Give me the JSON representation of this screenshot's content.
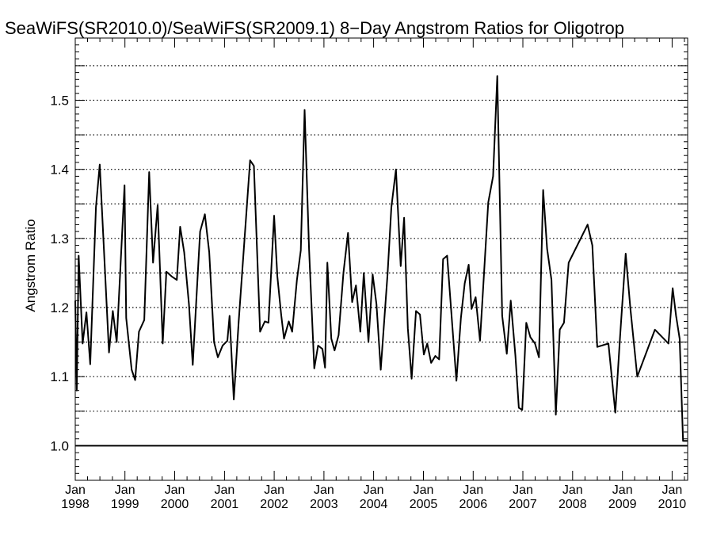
{
  "chart_data": {
    "type": "line",
    "title": "SeaWiFS(SR2010.0)/SeaWiFS(SR2009.1) 8−Day Angstrom Ratios for Oligotrop",
    "xlabel": "",
    "ylabel": "Angstrom Ratio",
    "ylim": [
      0.95,
      1.59
    ],
    "xlim": [
      "1998-01-01",
      "2010-04-25"
    ],
    "yticks": [
      "1.0",
      "1.1",
      "1.2",
      "1.3",
      "1.4",
      "1.5"
    ],
    "xticks": [
      {
        "month": "Jan",
        "year": "1998",
        "date": "1998-01-01"
      },
      {
        "month": "Jan",
        "year": "1999",
        "date": "1999-01-01"
      },
      {
        "month": "Jan",
        "year": "2000",
        "date": "2000-01-01"
      },
      {
        "month": "Jan",
        "year": "2001",
        "date": "2001-01-01"
      },
      {
        "month": "Jan",
        "year": "2002",
        "date": "2002-01-01"
      },
      {
        "month": "Jan",
        "year": "2003",
        "date": "2003-01-01"
      },
      {
        "month": "Jan",
        "year": "2004",
        "date": "2004-01-01"
      },
      {
        "month": "Jan",
        "year": "2005",
        "date": "2005-01-01"
      },
      {
        "month": "Jan",
        "year": "2006",
        "date": "2006-01-01"
      },
      {
        "month": "Jan",
        "year": "2007",
        "date": "2007-01-01"
      },
      {
        "month": "Jan",
        "year": "2008",
        "date": "2008-01-01"
      },
      {
        "month": "Jan",
        "year": "2009",
        "date": "2009-01-01"
      },
      {
        "month": "Jan",
        "year": "2010",
        "date": "2010-01-01"
      }
    ],
    "grid": "dotted horizontal every 0.05",
    "reference_line": 1.0,
    "series": [
      {
        "color": "#000000",
        "points": [
          [
            "1998-01-01",
            1.21
          ],
          [
            "1998-01-12",
            1.08
          ],
          [
            "1998-01-26",
            1.275
          ],
          [
            "1998-02-24",
            1.148
          ],
          [
            "1998-03-24",
            1.193
          ],
          [
            "1998-04-21",
            1.118
          ],
          [
            "1998-06-02",
            1.345
          ],
          [
            "1998-06-30",
            1.407
          ],
          [
            "1998-09-06",
            1.135
          ],
          [
            "1998-10-04",
            1.195
          ],
          [
            "1998-11-01",
            1.15
          ],
          [
            "1998-12-29",
            1.377
          ],
          [
            "1999-01-10",
            1.185
          ],
          [
            "1999-02-19",
            1.11
          ],
          [
            "1999-03-17",
            1.095
          ],
          [
            "1999-04-14",
            1.165
          ],
          [
            "1999-05-23",
            1.182
          ],
          [
            "1999-06-28",
            1.396
          ],
          [
            "1999-07-26",
            1.265
          ],
          [
            "1999-08-29",
            1.348
          ],
          [
            "1999-10-05",
            1.148
          ],
          [
            "1999-11-01",
            1.252
          ],
          [
            "1999-12-10",
            1.245
          ],
          [
            "2000-01-17",
            1.24
          ],
          [
            "2000-02-10",
            1.317
          ],
          [
            "2000-03-11",
            1.28
          ],
          [
            "2000-04-15",
            1.205
          ],
          [
            "2000-05-13",
            1.117
          ],
          [
            "2000-07-06",
            1.31
          ],
          [
            "2000-08-10",
            1.335
          ],
          [
            "2000-09-11",
            1.28
          ],
          [
            "2000-10-16",
            1.15
          ],
          [
            "2000-11-13",
            1.128
          ],
          [
            "2000-12-18",
            1.145
          ],
          [
            "2001-01-22",
            1.152
          ],
          [
            "2001-02-07",
            1.188
          ],
          [
            "2001-03-10",
            1.067
          ],
          [
            "2001-04-15",
            1.18
          ],
          [
            "2001-07-08",
            1.413
          ],
          [
            "2001-08-05",
            1.405
          ],
          [
            "2001-09-19",
            1.165
          ],
          [
            "2001-10-24",
            1.18
          ],
          [
            "2001-11-20",
            1.178
          ],
          [
            "2001-12-31",
            1.333
          ],
          [
            "2002-01-24",
            1.245
          ],
          [
            "2002-02-21",
            1.19
          ],
          [
            "2002-03-14",
            1.155
          ],
          [
            "2002-04-18",
            1.18
          ],
          [
            "2002-05-13",
            1.165
          ],
          [
            "2002-06-17",
            1.24
          ],
          [
            "2002-07-15",
            1.283
          ],
          [
            "2002-08-12",
            1.486
          ],
          [
            "2002-09-14",
            1.285
          ],
          [
            "2002-10-22",
            1.112
          ],
          [
            "2002-11-19",
            1.145
          ],
          [
            "2002-12-21",
            1.14
          ],
          [
            "2003-01-09",
            1.113
          ],
          [
            "2003-01-26",
            1.265
          ],
          [
            "2003-02-24",
            1.155
          ],
          [
            "2003-03-20",
            1.138
          ],
          [
            "2003-04-19",
            1.16
          ],
          [
            "2003-05-24",
            1.25
          ],
          [
            "2003-06-27",
            1.308
          ],
          [
            "2003-07-27",
            1.208
          ],
          [
            "2003-08-24",
            1.232
          ],
          [
            "2003-09-25",
            1.165
          ],
          [
            "2003-10-21",
            1.25
          ],
          [
            "2003-11-24",
            1.15
          ],
          [
            "2003-12-25",
            1.248
          ],
          [
            "2004-01-22",
            1.205
          ],
          [
            "2004-02-22",
            1.11
          ],
          [
            "2004-04-13",
            1.25
          ],
          [
            "2004-05-10",
            1.345
          ],
          [
            "2004-06-13",
            1.4
          ],
          [
            "2004-07-18",
            1.26
          ],
          [
            "2004-08-12",
            1.33
          ],
          [
            "2004-09-08",
            1.17
          ],
          [
            "2004-10-06",
            1.097
          ],
          [
            "2004-11-07",
            1.195
          ],
          [
            "2004-12-06",
            1.19
          ],
          [
            "2005-01-04",
            1.132
          ],
          [
            "2005-01-29",
            1.148
          ],
          [
            "2005-02-26",
            1.12
          ],
          [
            "2005-03-29",
            1.13
          ],
          [
            "2005-04-26",
            1.125
          ],
          [
            "2005-05-25",
            1.27
          ],
          [
            "2005-06-24",
            1.275
          ],
          [
            "2005-08-31",
            1.094
          ],
          [
            "2005-10-03",
            1.185
          ],
          [
            "2005-10-31",
            1.235
          ],
          [
            "2005-11-29",
            1.262
          ],
          [
            "2005-12-20",
            1.198
          ],
          [
            "2006-01-19",
            1.215
          ],
          [
            "2006-02-20",
            1.152
          ],
          [
            "2006-04-22",
            1.352
          ],
          [
            "2006-05-27",
            1.39
          ],
          [
            "2006-06-27",
            1.535
          ],
          [
            "2006-08-02",
            1.188
          ],
          [
            "2006-09-05",
            1.133
          ],
          [
            "2006-10-04",
            1.21
          ],
          [
            "2006-11-07",
            1.13
          ],
          [
            "2006-12-02",
            1.055
          ],
          [
            "2006-12-27",
            1.052
          ],
          [
            "2007-01-26",
            1.178
          ],
          [
            "2007-02-25",
            1.157
          ],
          [
            "2007-03-31",
            1.148
          ],
          [
            "2007-04-29",
            1.128
          ],
          [
            "2007-05-30",
            1.37
          ],
          [
            "2007-06-28",
            1.285
          ],
          [
            "2007-07-30",
            1.24
          ],
          [
            "2007-08-31",
            1.045
          ],
          [
            "2007-09-29",
            1.168
          ],
          [
            "2007-10-30",
            1.178
          ],
          [
            "2007-12-03",
            1.265
          ],
          [
            "2008-04-20",
            1.32
          ],
          [
            "2008-05-25",
            1.29
          ],
          [
            "2008-06-30",
            1.143
          ],
          [
            "2008-09-20",
            1.148
          ],
          [
            "2008-11-10",
            1.048
          ],
          [
            "2008-12-15",
            1.158
          ],
          [
            "2009-01-25",
            1.278
          ],
          [
            "2009-02-28",
            1.2
          ],
          [
            "2009-04-20",
            1.1
          ],
          [
            "2009-08-28",
            1.168
          ],
          [
            "2009-12-05",
            1.148
          ],
          [
            "2010-01-05",
            1.228
          ],
          [
            "2010-01-30",
            1.188
          ],
          [
            "2010-02-25",
            1.155
          ],
          [
            "2010-03-22",
            1.007
          ],
          [
            "2010-04-25",
            1.007
          ]
        ]
      }
    ]
  }
}
